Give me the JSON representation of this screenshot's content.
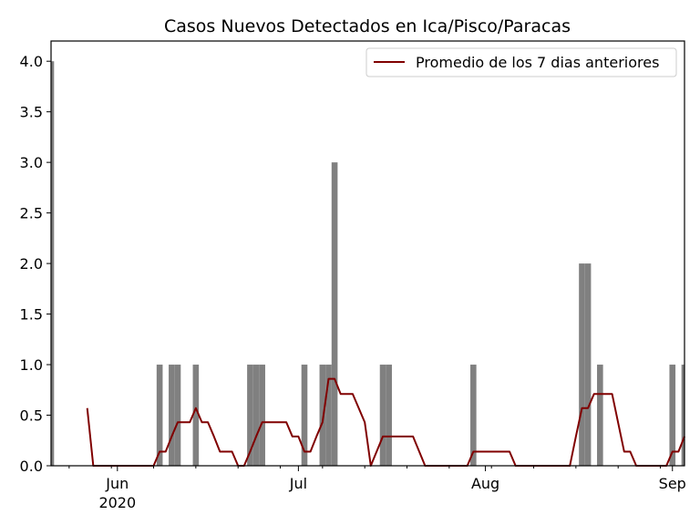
{
  "chart_data": {
    "type": "bar",
    "title": "Casos Nuevos Detectados en Ica/Pisco/Paracas",
    "xlabel": "",
    "ylabel": "",
    "ylim": [
      0,
      4.2
    ],
    "xlim": [
      "2020-05-21",
      "2020-09-03"
    ],
    "y_ticks": [
      "0.0",
      "0.5",
      "1.0",
      "1.5",
      "2.0",
      "2.5",
      "3.0",
      "3.5",
      "4.0"
    ],
    "x_ticks": [
      {
        "date": "2020-06-01",
        "label": "Jun",
        "sublabel": "2020"
      },
      {
        "date": "2020-07-01",
        "label": "Jul",
        "sublabel": ""
      },
      {
        "date": "2020-08-01",
        "label": "Aug",
        "sublabel": ""
      },
      {
        "date": "2020-09-01",
        "label": "Sep",
        "sublabel": ""
      }
    ],
    "bar_color": "#808080",
    "line_color": "#800000",
    "legend_position": "top-right",
    "bars": [
      {
        "date": "2020-05-21",
        "value": 4
      },
      {
        "date": "2020-06-08",
        "value": 1
      },
      {
        "date": "2020-06-10",
        "value": 1
      },
      {
        "date": "2020-06-11",
        "value": 1
      },
      {
        "date": "2020-06-14",
        "value": 1
      },
      {
        "date": "2020-06-23",
        "value": 1
      },
      {
        "date": "2020-06-24",
        "value": 1
      },
      {
        "date": "2020-06-25",
        "value": 1
      },
      {
        "date": "2020-07-02",
        "value": 1
      },
      {
        "date": "2020-07-05",
        "value": 1
      },
      {
        "date": "2020-07-06",
        "value": 1
      },
      {
        "date": "2020-07-07",
        "value": 3
      },
      {
        "date": "2020-07-15",
        "value": 1
      },
      {
        "date": "2020-07-16",
        "value": 1
      },
      {
        "date": "2020-07-30",
        "value": 1
      },
      {
        "date": "2020-08-17",
        "value": 2
      },
      {
        "date": "2020-08-18",
        "value": 2
      },
      {
        "date": "2020-08-20",
        "value": 1
      },
      {
        "date": "2020-09-01",
        "value": 1
      },
      {
        "date": "2020-09-03",
        "value": 1
      }
    ],
    "series": [
      {
        "name": "Promedio de los 7 dias anteriores",
        "points": [
          [
            "2020-05-27",
            0.57
          ],
          [
            "2020-05-28",
            0.0
          ],
          [
            "2020-06-07",
            0.0
          ],
          [
            "2020-06-08",
            0.14
          ],
          [
            "2020-06-09",
            0.14
          ],
          [
            "2020-06-10",
            0.29
          ],
          [
            "2020-06-11",
            0.43
          ],
          [
            "2020-06-13",
            0.43
          ],
          [
            "2020-06-14",
            0.57
          ],
          [
            "2020-06-15",
            0.43
          ],
          [
            "2020-06-16",
            0.43
          ],
          [
            "2020-06-17",
            0.29
          ],
          [
            "2020-06-18",
            0.14
          ],
          [
            "2020-06-20",
            0.14
          ],
          [
            "2020-06-21",
            0.0
          ],
          [
            "2020-06-22",
            0.0
          ],
          [
            "2020-06-23",
            0.14
          ],
          [
            "2020-06-24",
            0.29
          ],
          [
            "2020-06-25",
            0.43
          ],
          [
            "2020-06-29",
            0.43
          ],
          [
            "2020-06-30",
            0.29
          ],
          [
            "2020-07-01",
            0.29
          ],
          [
            "2020-07-02",
            0.14
          ],
          [
            "2020-07-03",
            0.14
          ],
          [
            "2020-07-04",
            0.29
          ],
          [
            "2020-07-05",
            0.43
          ],
          [
            "2020-07-06",
            0.86
          ],
          [
            "2020-07-07",
            0.86
          ],
          [
            "2020-07-08",
            0.71
          ],
          [
            "2020-07-10",
            0.71
          ],
          [
            "2020-07-12",
            0.43
          ],
          [
            "2020-07-13",
            0.0
          ],
          [
            "2020-07-15",
            0.29
          ],
          [
            "2020-07-20",
            0.29
          ],
          [
            "2020-07-22",
            0.0
          ],
          [
            "2020-07-29",
            0.0
          ],
          [
            "2020-07-30",
            0.14
          ],
          [
            "2020-08-05",
            0.14
          ],
          [
            "2020-08-06",
            0.0
          ],
          [
            "2020-08-15",
            0.0
          ],
          [
            "2020-08-16",
            0.29
          ],
          [
            "2020-08-17",
            0.57
          ],
          [
            "2020-08-18",
            0.57
          ],
          [
            "2020-08-19",
            0.71
          ],
          [
            "2020-08-22",
            0.71
          ],
          [
            "2020-08-24",
            0.14
          ],
          [
            "2020-08-25",
            0.14
          ],
          [
            "2020-08-26",
            0.0
          ],
          [
            "2020-08-31",
            0.0
          ],
          [
            "2020-09-01",
            0.14
          ],
          [
            "2020-09-02",
            0.14
          ],
          [
            "2020-09-03",
            0.29
          ]
        ]
      }
    ]
  }
}
